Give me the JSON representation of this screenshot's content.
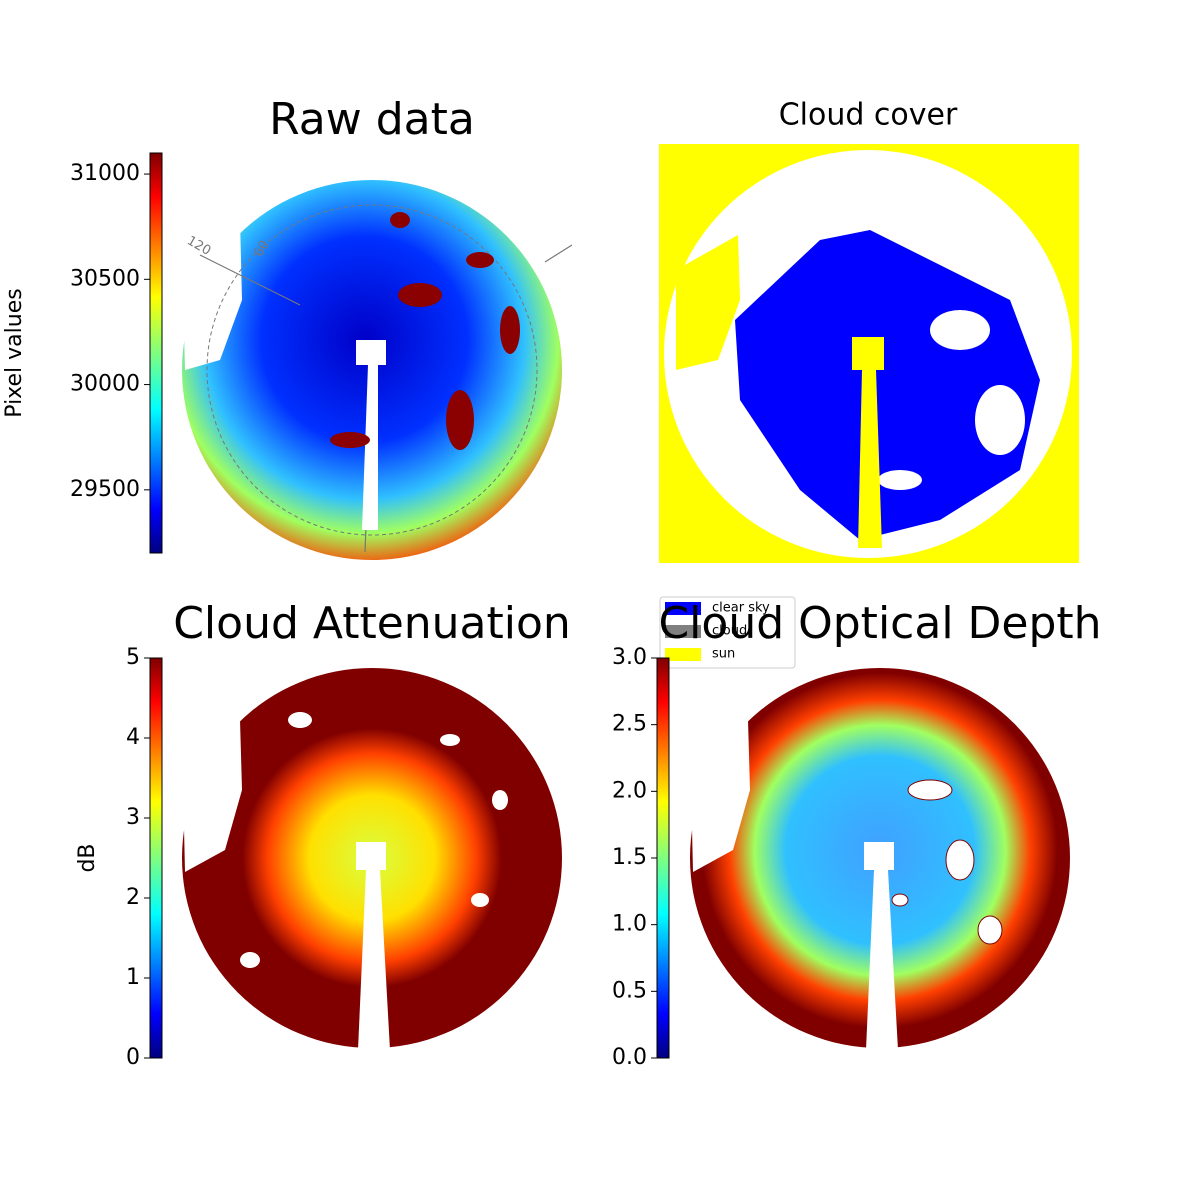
{
  "chart_data": [
    {
      "type": "image",
      "title": "Raw data",
      "colorbar_label": "Pixel values",
      "colormap": "jet",
      "ylim": [
        29200,
        31100
      ],
      "yticks": [
        29500,
        30000,
        30500,
        31000
      ],
      "annotations": [
        "120",
        "60"
      ]
    },
    {
      "type": "classification",
      "title": "Cloud cover",
      "categories": [
        "clear sky",
        "cloud",
        "sun"
      ],
      "colors": [
        "#0000ff",
        "#808080",
        "#ffff00"
      ]
    },
    {
      "type": "image",
      "title": "Cloud Attenuation",
      "colorbar_label": "dB",
      "colormap": "jet",
      "ylim": [
        0,
        5
      ],
      "yticks": [
        0,
        1,
        2,
        3,
        4,
        5
      ]
    },
    {
      "type": "image",
      "title": "Cloud Optical Depth",
      "colormap": "jet",
      "ylim": [
        0,
        3
      ],
      "yticks": [
        {
          "value": 0,
          "label": "0.0"
        },
        0.5,
        {
          "value": 1,
          "label": "1.0"
        },
        1.5,
        {
          "value": 2,
          "label": "2.0"
        },
        2.5,
        {
          "value": 3,
          "label": "3.0"
        }
      ]
    }
  ]
}
